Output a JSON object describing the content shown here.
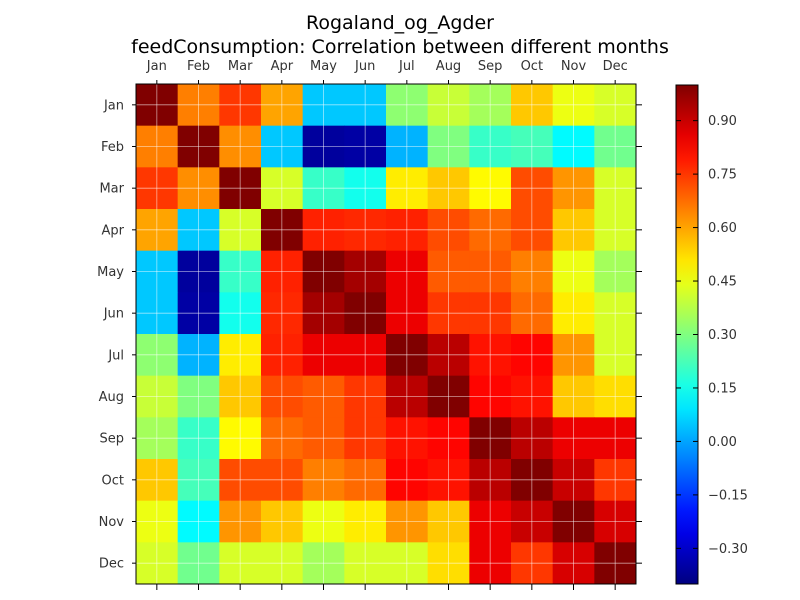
{
  "chart_data": {
    "type": "heatmap",
    "title": "Rogaland_og_Agder",
    "subtitle": "feedConsumption: Correlation between different months",
    "x_categories": [
      "Jan",
      "Feb",
      "Mar",
      "Apr",
      "May",
      "Jun",
      "Jul",
      "Aug",
      "Sep",
      "Oct",
      "Nov",
      "Dec"
    ],
    "y_categories": [
      "Jan",
      "Feb",
      "Mar",
      "Apr",
      "May",
      "Jun",
      "Jul",
      "Aug",
      "Sep",
      "Oct",
      "Nov",
      "Dec"
    ],
    "values": [
      [
        1.0,
        0.65,
        0.75,
        0.6,
        0.05,
        0.05,
        0.32,
        0.4,
        0.35,
        0.55,
        0.45,
        0.42
      ],
      [
        0.65,
        1.0,
        0.63,
        0.05,
        -0.36,
        -0.35,
        0.02,
        0.3,
        0.2,
        0.22,
        0.12,
        0.28
      ],
      [
        0.75,
        0.63,
        1.0,
        0.42,
        0.2,
        0.15,
        0.5,
        0.55,
        0.48,
        0.72,
        0.62,
        0.42
      ],
      [
        0.6,
        0.05,
        0.42,
        1.0,
        0.78,
        0.77,
        0.78,
        0.72,
        0.68,
        0.72,
        0.55,
        0.42
      ],
      [
        0.05,
        -0.36,
        0.2,
        0.78,
        1.0,
        0.95,
        0.85,
        0.7,
        0.7,
        0.65,
        0.45,
        0.35
      ],
      [
        0.05,
        -0.35,
        0.15,
        0.77,
        0.95,
        1.0,
        0.85,
        0.75,
        0.75,
        0.68,
        0.5,
        0.42
      ],
      [
        0.32,
        0.02,
        0.5,
        0.78,
        0.85,
        0.85,
        1.0,
        0.92,
        0.8,
        0.82,
        0.62,
        0.42
      ],
      [
        0.4,
        0.3,
        0.55,
        0.72,
        0.7,
        0.75,
        0.92,
        1.0,
        0.82,
        0.8,
        0.55,
        0.52
      ],
      [
        0.35,
        0.2,
        0.48,
        0.68,
        0.7,
        0.75,
        0.8,
        0.82,
        1.0,
        0.92,
        0.85,
        0.85
      ],
      [
        0.55,
        0.22,
        0.72,
        0.72,
        0.65,
        0.68,
        0.82,
        0.8,
        0.92,
        1.0,
        0.9,
        0.75
      ],
      [
        0.45,
        0.12,
        0.62,
        0.55,
        0.45,
        0.5,
        0.62,
        0.55,
        0.85,
        0.9,
        1.0,
        0.88
      ],
      [
        0.42,
        0.28,
        0.42,
        0.42,
        0.35,
        0.42,
        0.42,
        0.52,
        0.85,
        0.75,
        0.88,
        1.0
      ]
    ],
    "colormap": "jet",
    "color_range": [
      -0.4,
      1.0
    ],
    "colorbar_ticks": [
      0.9,
      0.75,
      0.6,
      0.45,
      0.3,
      0.15,
      0.0,
      -0.15,
      -0.3
    ],
    "colorbar_tick_labels": [
      "0.90",
      "0.75",
      "0.60",
      "0.45",
      "0.30",
      "0.15",
      "0.00",
      "−0.15",
      "−0.30"
    ],
    "x_axis_position": "top",
    "grid": true
  }
}
